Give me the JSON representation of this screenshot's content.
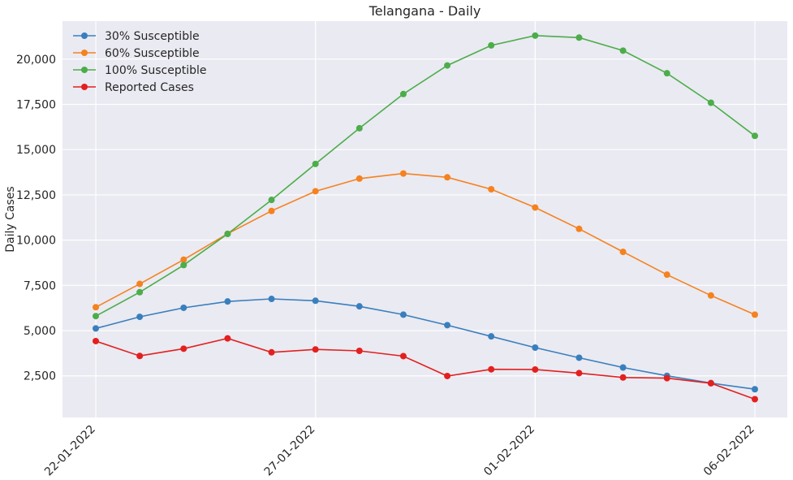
{
  "chart_data": {
    "type": "line",
    "title": "Telangana - Daily",
    "xlabel": "",
    "ylabel": "Daily Cases",
    "x": [
      "22-01-2022",
      "23-01-2022",
      "24-01-2022",
      "25-01-2022",
      "26-01-2022",
      "27-01-2022",
      "28-01-2022",
      "29-01-2022",
      "30-01-2022",
      "31-01-2022",
      "01-02-2022",
      "02-02-2022",
      "03-02-2022",
      "04-02-2022",
      "05-02-2022",
      "06-02-2022"
    ],
    "xticks": [
      "22-01-2022",
      "27-01-2022",
      "01-02-2022",
      "06-02-2022"
    ],
    "yticks": [
      2500,
      5000,
      7500,
      10000,
      12500,
      15000,
      17500,
      20000
    ],
    "ytick_labels": [
      "2,500",
      "5,000",
      "7,500",
      "10,000",
      "12,500",
      "15,000",
      "17,500",
      "20,000"
    ],
    "ylim": [
      200,
      22100
    ],
    "grid": true,
    "legend_position": "top-left",
    "series": [
      {
        "name": "30% Susceptible",
        "color": "#3a7fbd",
        "values": [
          5120,
          5760,
          6260,
          6610,
          6750,
          6650,
          6340,
          5880,
          5300,
          4680,
          4060,
          3500,
          2960,
          2500,
          2100,
          1760
        ]
      },
      {
        "name": "60% Susceptible",
        "color": "#f5821f",
        "values": [
          6290,
          7580,
          8920,
          10350,
          11610,
          12700,
          13400,
          13680,
          13470,
          12810,
          11800,
          10620,
          9350,
          8090,
          6940,
          5880
        ]
      },
      {
        "name": "100% Susceptible",
        "color": "#4cad4a",
        "values": [
          5800,
          7120,
          8620,
          10340,
          12220,
          14210,
          16180,
          18070,
          19650,
          20760,
          21300,
          21190,
          20470,
          19220,
          17590,
          15760
        ]
      },
      {
        "name": "Reported Cases",
        "color": "#e3201f",
        "values": [
          4420,
          3600,
          4000,
          4570,
          3800,
          3960,
          3880,
          3590,
          2490,
          2860,
          2850,
          2650,
          2410,
          2370,
          2090,
          1210
        ]
      }
    ]
  }
}
